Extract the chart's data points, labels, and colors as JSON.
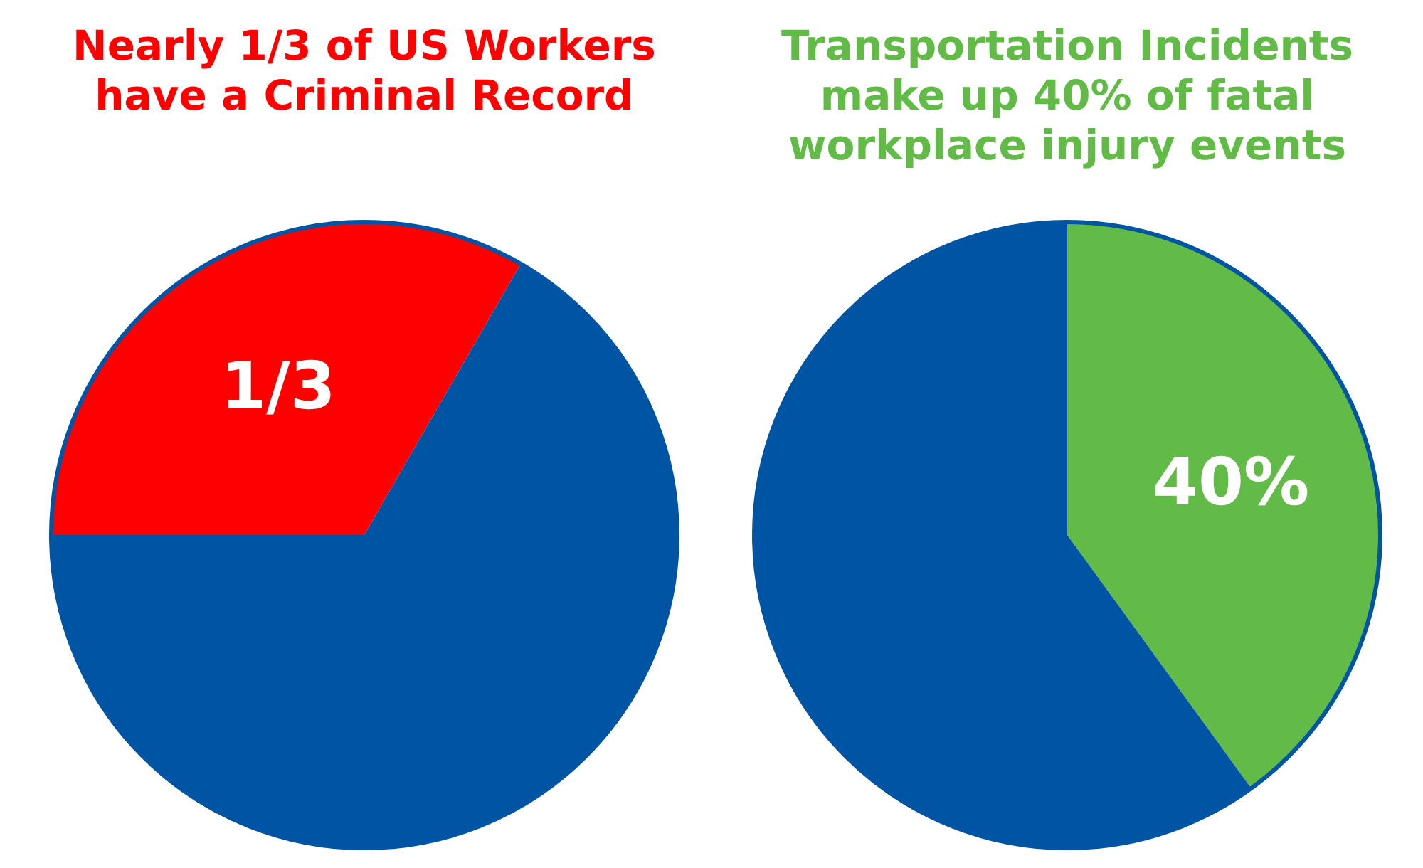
{
  "chart_data": [
    {
      "type": "pie",
      "title": "Nearly 1/3 of US Workers\nhave a Criminal Record",
      "categories": [
        null,
        null
      ],
      "values": [
        0.3333,
        0.6667
      ],
      "colors": [
        "#ff0000",
        "#0054a4"
      ],
      "value_labels": [
        "1/3",
        null
      ]
    },
    {
      "type": "pie",
      "title": "Transportation Incidents\nmake up 40% of fatal\nworkplace injury events",
      "categories": [
        null,
        null
      ],
      "values": [
        40,
        60
      ],
      "colors": [
        "#62bb46",
        "#0054a4"
      ],
      "value_labels": [
        "40%",
        null
      ]
    }
  ]
}
